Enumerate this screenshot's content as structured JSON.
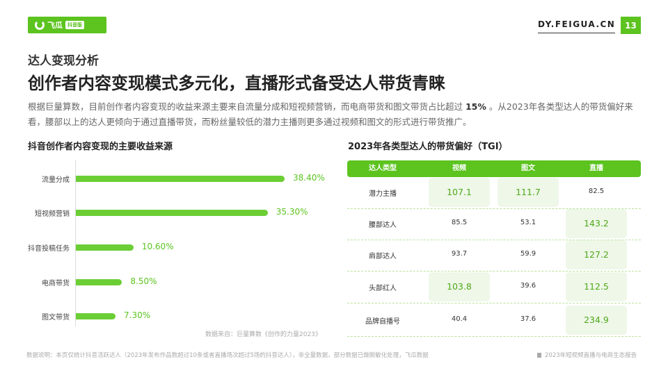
{
  "header": {
    "logo_text": "飞瓜",
    "logo_tag": "抖音版",
    "site": "DY.FEIGUA.CN",
    "page": "13"
  },
  "section": "达人变现分析",
  "title": "创作者内容变现模式多元化，直播形式备受达人带货青睐",
  "para": {
    "pre": "根据巨量算数，目前创作者内容变现的收益来源主要来自流量分成和短视频营销，而电商带货和图文带货占比超过 ",
    "bold": "15%",
    "post": " 。从2023年各类型达人的带货偏好来看，腰部以上的达人更倾向于通过直播带货，而粉丝量较低的潜力主播则更多通过视频和图文的形式进行带货推广。"
  },
  "colors": {
    "accent": "#5cc31f",
    "bar": "#6cce35",
    "highlight": "#eef7e8"
  },
  "chart_data": [
    {
      "type": "bar",
      "orientation": "horizontal",
      "title": "抖音创作者内容变现的主要收益来源",
      "categories": [
        "流量分成",
        "短视频营销",
        "抖音投稿任务",
        "电商带货",
        "图文带货"
      ],
      "values": [
        38.4,
        35.3,
        10.6,
        8.5,
        7.3
      ],
      "labels": [
        "38.40%",
        "35.30%",
        "10.60%",
        "8.50%",
        "7.30%"
      ],
      "source": "数据来自：巨量算数《创作的力量2023》"
    },
    {
      "type": "table",
      "title": "2023年各类型达人的带货偏好（TGI）",
      "columns": [
        "达人类型",
        "视频",
        "图文",
        "直播"
      ],
      "rows": [
        [
          "潜力主播",
          "107.1",
          "111.7",
          "82.5"
        ],
        [
          "腰部达人",
          "85.5",
          "53.1",
          "143.2"
        ],
        [
          "肩部达人",
          "93.7",
          "59.9",
          "127.2"
        ],
        [
          "头部红人",
          "103.8",
          "39.6",
          "112.5"
        ],
        [
          "品牌自播号",
          "40.4",
          "37.6",
          "234.9"
        ]
      ],
      "highlight_threshold": 100
    }
  ],
  "footer": {
    "note": "数据说明：本页仅统计抖音活跃达人（2023年发布作品数超过10条或者直播场次超过5场的抖音达人），非全量数据，部分数据已做脱敏化处理，飞瓜数据",
    "report": "2023年短视频直播与电商生态报告"
  }
}
